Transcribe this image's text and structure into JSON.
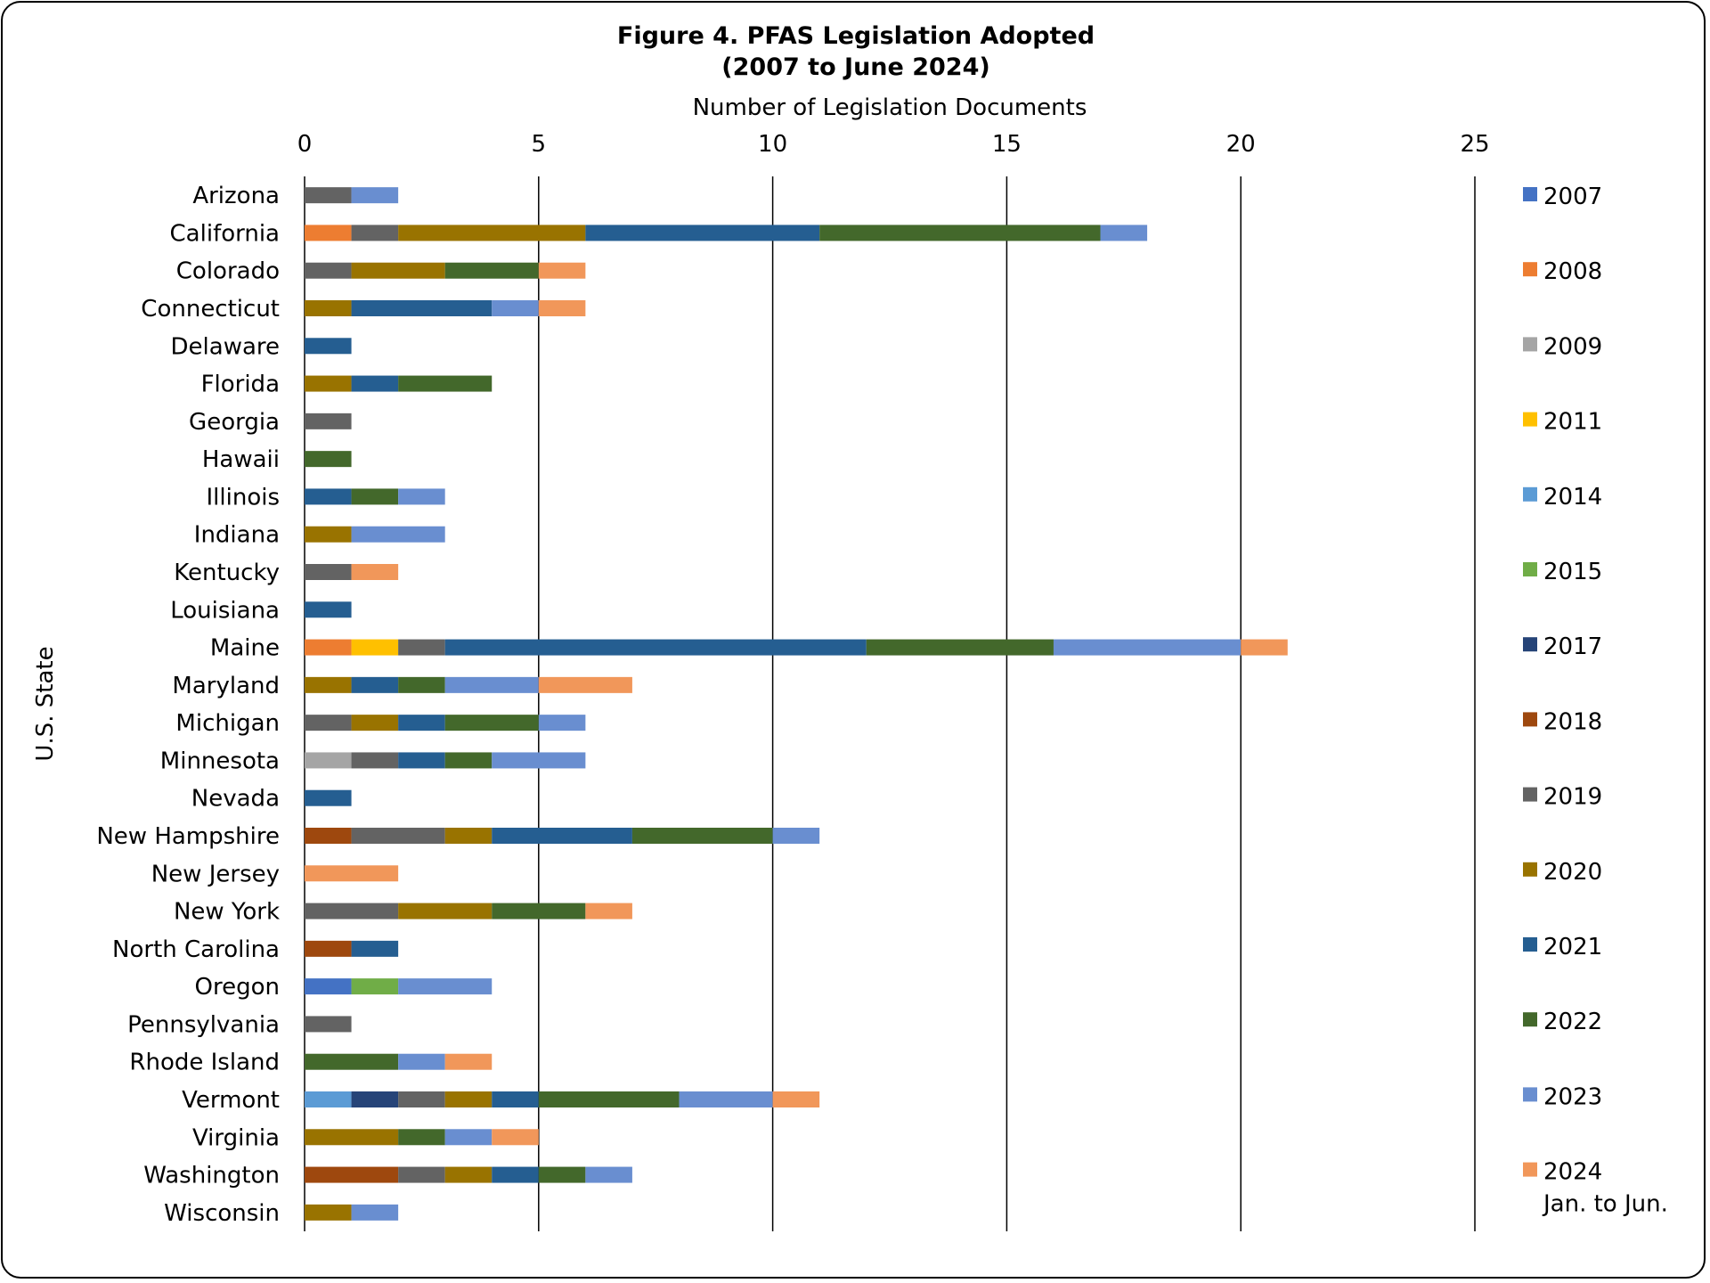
{
  "chart_data": {
    "type": "bar",
    "orientation": "horizontal",
    "stacked": true,
    "title_line1": "Figure 4. PFAS Legislation Adopted",
    "title_line2": "(2007 to June 2024)",
    "xlabel": "Number of Legislation Documents",
    "ylabel": "U.S. State",
    "xlim": [
      0,
      25
    ],
    "xticks": [
      0,
      5,
      10,
      15,
      20,
      25
    ],
    "grid": "vertical",
    "legend_position": "right",
    "categories": [
      "Arizona",
      "California",
      "Colorado",
      "Connecticut",
      "Delaware",
      "Florida",
      "Georgia",
      "Hawaii",
      "Illinois",
      "Indiana",
      "Kentucky",
      "Louisiana",
      "Maine",
      "Maryland",
      "Michigan",
      "Minnesota",
      "Nevada",
      "New Hampshire",
      "New Jersey",
      "New York",
      "North Carolina",
      "Oregon",
      "Pennsylvania",
      "Rhode Island",
      "Vermont",
      "Virginia",
      "Washington",
      "Wisconsin"
    ],
    "series": [
      {
        "name": "2007",
        "color": "#4472C4",
        "values": [
          0,
          0,
          0,
          0,
          0,
          0,
          0,
          0,
          0,
          0,
          0,
          0,
          0,
          0,
          0,
          0,
          0,
          0,
          0,
          0,
          0,
          1,
          0,
          0,
          0,
          0,
          0,
          0
        ]
      },
      {
        "name": "2008",
        "color": "#ED7D31",
        "values": [
          0,
          1,
          0,
          0,
          0,
          0,
          0,
          0,
          0,
          0,
          0,
          0,
          1,
          0,
          0,
          0,
          0,
          0,
          0,
          0,
          0,
          0,
          0,
          0,
          0,
          0,
          0,
          0
        ]
      },
      {
        "name": "2009",
        "color": "#A5A5A5",
        "values": [
          0,
          0,
          0,
          0,
          0,
          0,
          0,
          0,
          0,
          0,
          0,
          0,
          0,
          0,
          0,
          1,
          0,
          0,
          0,
          0,
          0,
          0,
          0,
          0,
          0,
          0,
          0,
          0
        ]
      },
      {
        "name": "2011",
        "color": "#FFC000",
        "values": [
          0,
          0,
          0,
          0,
          0,
          0,
          0,
          0,
          0,
          0,
          0,
          0,
          1,
          0,
          0,
          0,
          0,
          0,
          0,
          0,
          0,
          0,
          0,
          0,
          0,
          0,
          0,
          0
        ]
      },
      {
        "name": "2014",
        "color": "#5B9BD5",
        "values": [
          0,
          0,
          0,
          0,
          0,
          0,
          0,
          0,
          0,
          0,
          0,
          0,
          0,
          0,
          0,
          0,
          0,
          0,
          0,
          0,
          0,
          0,
          0,
          0,
          1,
          0,
          0,
          0
        ]
      },
      {
        "name": "2015",
        "color": "#70AD47",
        "values": [
          0,
          0,
          0,
          0,
          0,
          0,
          0,
          0,
          0,
          0,
          0,
          0,
          0,
          0,
          0,
          0,
          0,
          0,
          0,
          0,
          0,
          1,
          0,
          0,
          0,
          0,
          0,
          0
        ]
      },
      {
        "name": "2017",
        "color": "#264478",
        "values": [
          0,
          0,
          0,
          0,
          0,
          0,
          0,
          0,
          0,
          0,
          0,
          0,
          0,
          0,
          0,
          0,
          0,
          0,
          0,
          0,
          0,
          0,
          0,
          0,
          1,
          0,
          0,
          0
        ]
      },
      {
        "name": "2018",
        "color": "#9E480E",
        "values": [
          0,
          0,
          0,
          0,
          0,
          0,
          0,
          0,
          0,
          0,
          0,
          0,
          0,
          0,
          0,
          0,
          0,
          1,
          0,
          0,
          1,
          0,
          0,
          0,
          0,
          0,
          2,
          0
        ]
      },
      {
        "name": "2019",
        "color": "#636363",
        "values": [
          1,
          1,
          1,
          0,
          0,
          0,
          1,
          0,
          0,
          0,
          1,
          0,
          1,
          0,
          1,
          1,
          0,
          2,
          0,
          2,
          0,
          0,
          1,
          0,
          1,
          0,
          1,
          0
        ]
      },
      {
        "name": "2020",
        "color": "#997300",
        "values": [
          0,
          4,
          2,
          1,
          0,
          1,
          0,
          0,
          0,
          1,
          0,
          0,
          0,
          1,
          1,
          0,
          0,
          1,
          0,
          2,
          0,
          0,
          0,
          0,
          1,
          2,
          1,
          1
        ]
      },
      {
        "name": "2021",
        "color": "#255E91",
        "values": [
          0,
          5,
          0,
          3,
          1,
          1,
          0,
          0,
          1,
          0,
          0,
          1,
          9,
          1,
          1,
          1,
          1,
          3,
          0,
          0,
          1,
          0,
          0,
          0,
          1,
          0,
          1,
          0
        ]
      },
      {
        "name": "2022",
        "color": "#43682B",
        "values": [
          0,
          6,
          2,
          0,
          0,
          2,
          0,
          1,
          1,
          0,
          0,
          0,
          4,
          1,
          2,
          1,
          0,
          3,
          0,
          2,
          0,
          0,
          0,
          2,
          3,
          1,
          1,
          0
        ]
      },
      {
        "name": "2023",
        "color": "#698ED0",
        "values": [
          1,
          1,
          0,
          1,
          0,
          0,
          0,
          0,
          1,
          2,
          0,
          0,
          4,
          2,
          1,
          2,
          0,
          1,
          0,
          0,
          0,
          2,
          0,
          1,
          2,
          1,
          1,
          1
        ]
      },
      {
        "name": "2024",
        "label_line2": "Jan. to Jun.",
        "color": "#F1975A",
        "values": [
          0,
          0,
          1,
          1,
          0,
          0,
          0,
          0,
          0,
          0,
          1,
          0,
          1,
          2,
          0,
          0,
          0,
          0,
          2,
          1,
          0,
          0,
          0,
          1,
          1,
          1,
          0,
          0
        ]
      }
    ]
  }
}
